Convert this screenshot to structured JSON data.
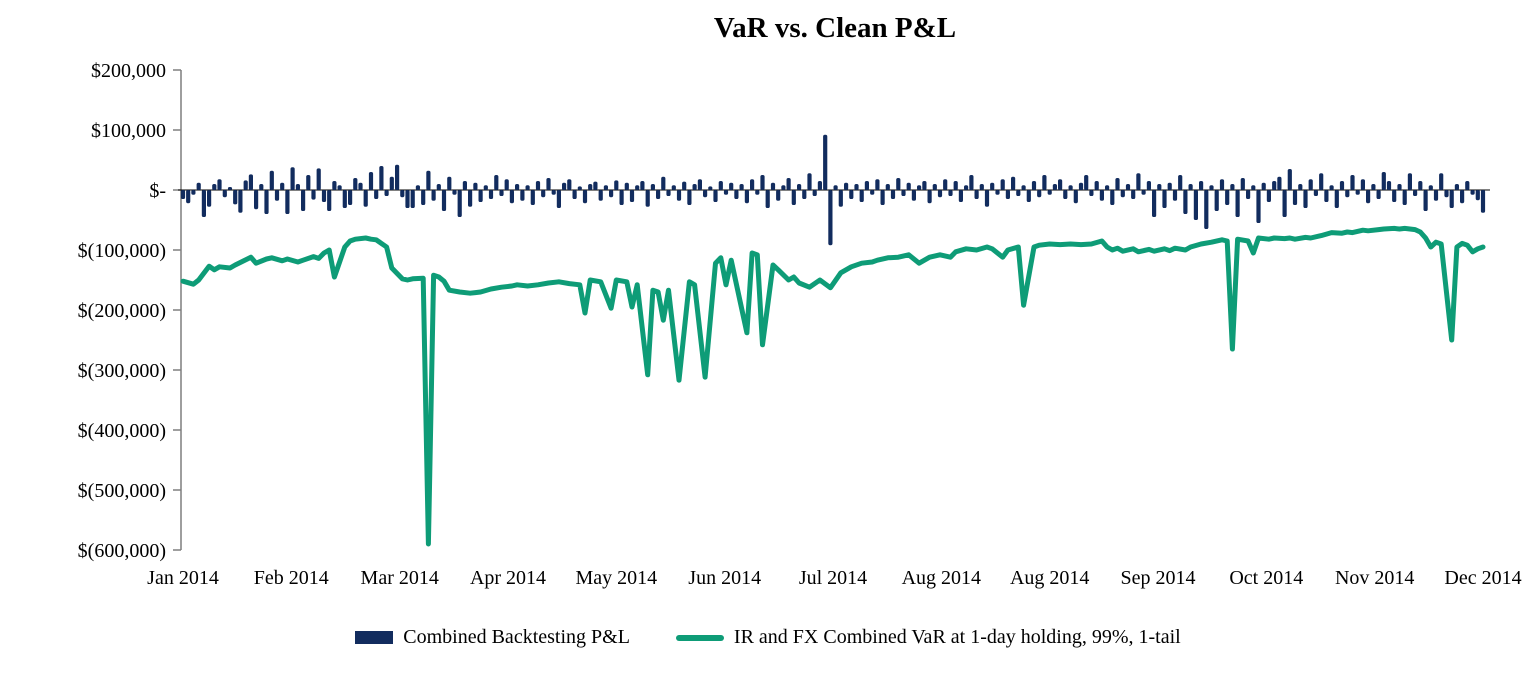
{
  "chart": {
    "title": "VaR vs. Clean P&L"
  },
  "chart_data": {
    "type": "combo-bar-line",
    "title": "VaR vs. Clean P&L",
    "grid": false,
    "legend_position": "bottom",
    "colors": {
      "bar": "#122c5e",
      "line": "#0e9c77",
      "axis": "#7f7f7f",
      "zero_line": "#000000",
      "text": "#000000"
    },
    "x_axis": {
      "labels": [
        "Jan 2014",
        "Feb 2014",
        "Mar 2014",
        "Apr 2014",
        "May 2014",
        "Jun 2014",
        "Jul 2014",
        "Aug 2014",
        "Aug 2014",
        "Sep 2014",
        "Oct 2014",
        "Nov 2014",
        "Dec 2014"
      ]
    },
    "y_axis": {
      "tick_labels": [
        "$200,000",
        "$100,000",
        "$-",
        "$(100,000)",
        "$(200,000)",
        "$(300,000)",
        "$(400,000)",
        "$(500,000)",
        "$(600,000)"
      ],
      "tick_values": [
        200000,
        100000,
        0,
        -100000,
        -200000,
        -300000,
        -400000,
        -500000,
        -600000
      ],
      "ylim": [
        -600000,
        200000
      ]
    },
    "series": [
      {
        "name": "Combined Backtesting P&L",
        "type": "bar",
        "color": "#122c5e",
        "values": [
          -15000,
          -22000,
          -8000,
          12000,
          -45000,
          -28000,
          10000,
          18000,
          -12000,
          4000,
          -24000,
          -38000,
          16000,
          26000,
          -32000,
          10000,
          -40000,
          32000,
          -18000,
          12000,
          -40000,
          38000,
          10000,
          -35000,
          25000,
          -16000,
          36000,
          -20000,
          -35000,
          15000,
          8000,
          -30000,
          -25000,
          20000,
          12000,
          -28000,
          30000,
          -15000,
          40000,
          -10000,
          22000,
          42000,
          -12000,
          -30000,
          -30000,
          8000,
          -25000,
          32000,
          -18000,
          10000,
          -35000,
          22000,
          -8000,
          -45000,
          15000,
          -28000,
          12000,
          -20000,
          8000,
          -15000,
          25000,
          -10000,
          18000,
          -22000,
          10000,
          -18000,
          8000,
          -25000,
          15000,
          -12000,
          20000,
          -8000,
          -30000,
          12000,
          18000,
          -15000,
          6000,
          -22000,
          10000,
          14000,
          -18000,
          8000,
          -12000,
          16000,
          -25000,
          12000,
          -20000,
          8000,
          15000,
          -28000,
          10000,
          -15000,
          22000,
          -10000,
          8000,
          -18000,
          14000,
          -25000,
          10000,
          18000,
          -12000,
          6000,
          -20000,
          15000,
          -8000,
          12000,
          -15000,
          10000,
          -22000,
          18000,
          -8000,
          25000,
          -30000,
          12000,
          -18000,
          8000,
          20000,
          -25000,
          10000,
          -15000,
          28000,
          -10000,
          15000,
          92000,
          -92000,
          8000,
          -28000,
          12000,
          -15000,
          10000,
          -20000,
          15000,
          -8000,
          18000,
          -25000,
          10000,
          -15000,
          20000,
          -10000,
          12000,
          -18000,
          8000,
          15000,
          -22000,
          10000,
          -12000,
          18000,
          -10000,
          15000,
          -20000,
          8000,
          25000,
          -15000,
          10000,
          -28000,
          12000,
          -8000,
          18000,
          -15000,
          22000,
          -10000,
          8000,
          -20000,
          15000,
          -12000,
          25000,
          -8000,
          10000,
          18000,
          -15000,
          8000,
          -22000,
          12000,
          25000,
          -10000,
          15000,
          -18000,
          8000,
          -25000,
          20000,
          -12000,
          10000,
          -15000,
          28000,
          -8000,
          15000,
          -45000,
          10000,
          -30000,
          12000,
          -18000,
          25000,
          -40000,
          10000,
          -50000,
          15000,
          -65000,
          8000,
          -35000,
          18000,
          -25000,
          10000,
          -45000,
          20000,
          -15000,
          8000,
          -55000,
          12000,
          -20000,
          15000,
          22000,
          -45000,
          35000,
          -25000,
          10000,
          -30000,
          18000,
          -10000,
          28000,
          -20000,
          8000,
          -30000,
          15000,
          -12000,
          25000,
          -8000,
          18000,
          -22000,
          10000,
          -15000,
          30000,
          15000,
          -20000,
          10000,
          -25000,
          28000,
          -10000,
          15000,
          -35000,
          8000,
          -18000,
          28000,
          -12000,
          -30000,
          10000,
          -22000,
          15000,
          -8000,
          -17000,
          -38000
        ]
      },
      {
        "name": "IR and FX Combined VaR at 1-day holding, 99%, 1-tail",
        "type": "line",
        "color": "#0e9c77",
        "points": [
          [
            0,
            -152000
          ],
          [
            2,
            -157000
          ],
          [
            3,
            -150000
          ],
          [
            5,
            -127000
          ],
          [
            6,
            -133000
          ],
          [
            7,
            -128000
          ],
          [
            9,
            -130000
          ],
          [
            10,
            -125000
          ],
          [
            13,
            -112000
          ],
          [
            14,
            -122000
          ],
          [
            16,
            -115000
          ],
          [
            17,
            -113000
          ],
          [
            19,
            -118000
          ],
          [
            20,
            -115000
          ],
          [
            22,
            -120000
          ],
          [
            23,
            -117000
          ],
          [
            25,
            -111000
          ],
          [
            26,
            -114000
          ],
          [
            27,
            -105000
          ],
          [
            28,
            -100000
          ],
          [
            29,
            -145000
          ],
          [
            30,
            -120000
          ],
          [
            31,
            -95000
          ],
          [
            32,
            -85000
          ],
          [
            33,
            -82000
          ],
          [
            35,
            -80000
          ],
          [
            36,
            -82000
          ],
          [
            37,
            -83000
          ],
          [
            39,
            -95000
          ],
          [
            40,
            -130000
          ],
          [
            42,
            -148000
          ],
          [
            43,
            -150000
          ],
          [
            44,
            -148000
          ],
          [
            46,
            -147000
          ],
          [
            47,
            -590000
          ],
          [
            48,
            -142000
          ],
          [
            49,
            -145000
          ],
          [
            50,
            -152000
          ],
          [
            51,
            -167000
          ],
          [
            53,
            -170000
          ],
          [
            55,
            -172000
          ],
          [
            56,
            -171000
          ],
          [
            57,
            -170000
          ],
          [
            59,
            -165000
          ],
          [
            61,
            -162000
          ],
          [
            63,
            -160000
          ],
          [
            64,
            -158000
          ],
          [
            66,
            -160000
          ],
          [
            68,
            -158000
          ],
          [
            70,
            -155000
          ],
          [
            72,
            -153000
          ],
          [
            74,
            -156000
          ],
          [
            76,
            -158000
          ],
          [
            77,
            -205000
          ],
          [
            78,
            -150000
          ],
          [
            80,
            -153000
          ],
          [
            82,
            -197000
          ],
          [
            83,
            -150000
          ],
          [
            85,
            -153000
          ],
          [
            86,
            -195000
          ],
          [
            87,
            -158000
          ],
          [
            89,
            -308000
          ],
          [
            90,
            -167000
          ],
          [
            91,
            -170000
          ],
          [
            92,
            -217000
          ],
          [
            93,
            -167000
          ],
          [
            95,
            -317000
          ],
          [
            97,
            -153000
          ],
          [
            98,
            -158000
          ],
          [
            100,
            -312000
          ],
          [
            102,
            -122000
          ],
          [
            103,
            -113000
          ],
          [
            104,
            -158000
          ],
          [
            105,
            -117000
          ],
          [
            108,
            -238000
          ],
          [
            109,
            -105000
          ],
          [
            110,
            -108000
          ],
          [
            111,
            -258000
          ],
          [
            113,
            -125000
          ],
          [
            114,
            -133000
          ],
          [
            116,
            -150000
          ],
          [
            117,
            -145000
          ],
          [
            118,
            -155000
          ],
          [
            120,
            -162000
          ],
          [
            122,
            -150000
          ],
          [
            124,
            -163000
          ],
          [
            126,
            -138000
          ],
          [
            128,
            -128000
          ],
          [
            130,
            -122000
          ],
          [
            132,
            -120000
          ],
          [
            133,
            -117000
          ],
          [
            135,
            -113000
          ],
          [
            137,
            -112000
          ],
          [
            139,
            -108000
          ],
          [
            141,
            -122000
          ],
          [
            143,
            -112000
          ],
          [
            145,
            -108000
          ],
          [
            147,
            -112000
          ],
          [
            148,
            -103000
          ],
          [
            150,
            -98000
          ],
          [
            152,
            -100000
          ],
          [
            154,
            -95000
          ],
          [
            155,
            -98000
          ],
          [
            157,
            -112000
          ],
          [
            158,
            -100000
          ],
          [
            160,
            -95000
          ],
          [
            161,
            -192000
          ],
          [
            163,
            -95000
          ],
          [
            164,
            -92000
          ],
          [
            166,
            -90000
          ],
          [
            168,
            -91000
          ],
          [
            170,
            -90000
          ],
          [
            172,
            -91000
          ],
          [
            174,
            -90000
          ],
          [
            176,
            -85000
          ],
          [
            177,
            -95000
          ],
          [
            178,
            -100000
          ],
          [
            179,
            -97000
          ],
          [
            180,
            -102000
          ],
          [
            182,
            -98000
          ],
          [
            183,
            -103000
          ],
          [
            185,
            -99000
          ],
          [
            186,
            -102000
          ],
          [
            188,
            -98000
          ],
          [
            189,
            -101000
          ],
          [
            190,
            -97000
          ],
          [
            192,
            -100000
          ],
          [
            193,
            -95000
          ],
          [
            195,
            -90000
          ],
          [
            197,
            -87000
          ],
          [
            199,
            -83000
          ],
          [
            200,
            -85000
          ],
          [
            201,
            -265000
          ],
          [
            202,
            -82000
          ],
          [
            204,
            -85000
          ],
          [
            205,
            -105000
          ],
          [
            206,
            -80000
          ],
          [
            208,
            -82000
          ],
          [
            209,
            -80000
          ],
          [
            211,
            -81000
          ],
          [
            212,
            -80000
          ],
          [
            213,
            -82000
          ],
          [
            215,
            -79000
          ],
          [
            216,
            -80000
          ],
          [
            218,
            -76000
          ],
          [
            220,
            -71000
          ],
          [
            222,
            -72000
          ],
          [
            223,
            -70000
          ],
          [
            224,
            -71000
          ],
          [
            226,
            -67000
          ],
          [
            227,
            -68000
          ],
          [
            229,
            -66000
          ],
          [
            230,
            -65000
          ],
          [
            232,
            -64000
          ],
          [
            233,
            -65000
          ],
          [
            234,
            -64000
          ],
          [
            236,
            -66000
          ],
          [
            237,
            -70000
          ],
          [
            238,
            -80000
          ],
          [
            239,
            -95000
          ],
          [
            240,
            -87000
          ],
          [
            241,
            -90000
          ],
          [
            243,
            -250000
          ],
          [
            244,
            -95000
          ],
          [
            245,
            -89000
          ],
          [
            246,
            -92000
          ],
          [
            247,
            -103000
          ],
          [
            248,
            -98000
          ],
          [
            249,
            -95000
          ]
        ]
      }
    ]
  }
}
